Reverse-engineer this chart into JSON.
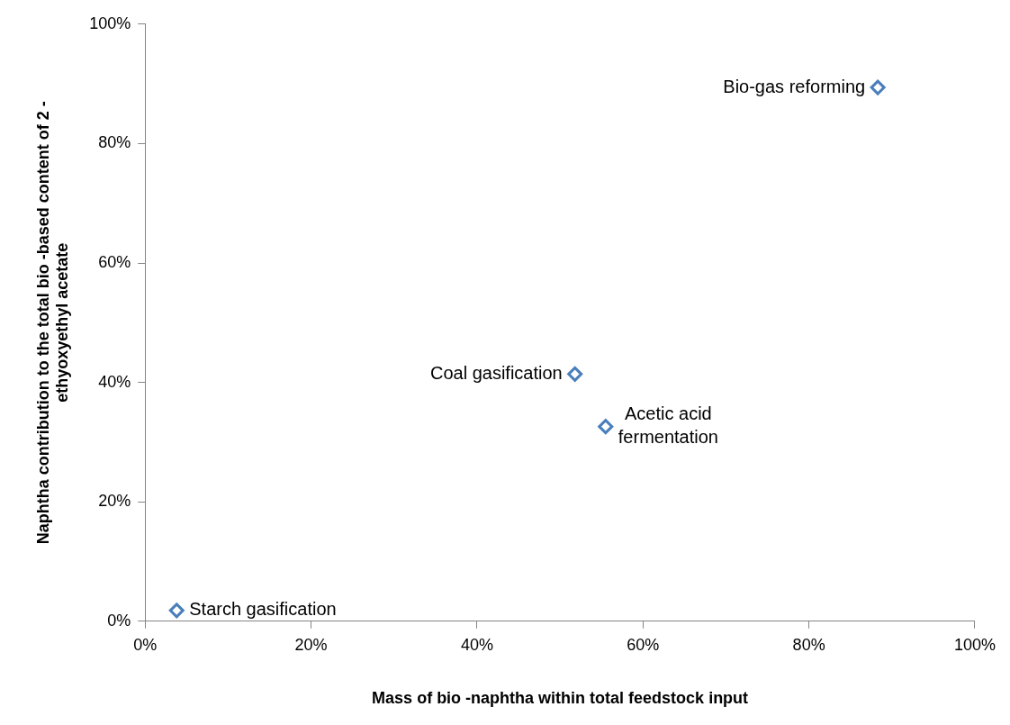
{
  "chart_data": {
    "type": "scatter",
    "xlabel": "Mass of bio -naphtha within total feedstock input",
    "ylabel": "Naphtha contribution to the total bio -based content of 2 -\nethyoxyethyl acetate",
    "series": [
      {
        "color": "#4a7ebb",
        "x": [
          3.8,
          51.8,
          55.5,
          88.3
        ],
        "values": [
          1.8,
          41.4,
          32.6,
          89.4
        ]
      }
    ],
    "xlim": [
      0,
      100
    ],
    "ylim": [
      0,
      100
    ],
    "xticks": [
      {
        "value": 0,
        "label": "0%"
      },
      {
        "value": 20,
        "label": "20%"
      },
      {
        "value": 40,
        "label": "40%"
      },
      {
        "value": 60,
        "label": "60%"
      },
      {
        "value": 80,
        "label": "80%"
      },
      {
        "value": 100,
        "label": "100%"
      }
    ],
    "yticks": [
      {
        "value": 0,
        "label": "0%"
      },
      {
        "value": 20,
        "label": "20%"
      },
      {
        "value": 40,
        "label": "40%"
      },
      {
        "value": 60,
        "label": "60%"
      },
      {
        "value": 80,
        "label": "80%"
      },
      {
        "value": 100,
        "label": "100%"
      }
    ],
    "annotations": [
      {
        "text": "Starch gasification",
        "x": 3.8,
        "y": 1.8
      },
      {
        "text": "Coal gasification",
        "x": 51.8,
        "y": 41.4
      },
      {
        "text": "Acetic acid\nfermentation",
        "x": 55.5,
        "y": 32.6
      },
      {
        "text": "Bio-gas reforming",
        "x": 88.3,
        "y": 89.4
      }
    ],
    "marker": "diamond",
    "grid": false,
    "legend": false
  }
}
